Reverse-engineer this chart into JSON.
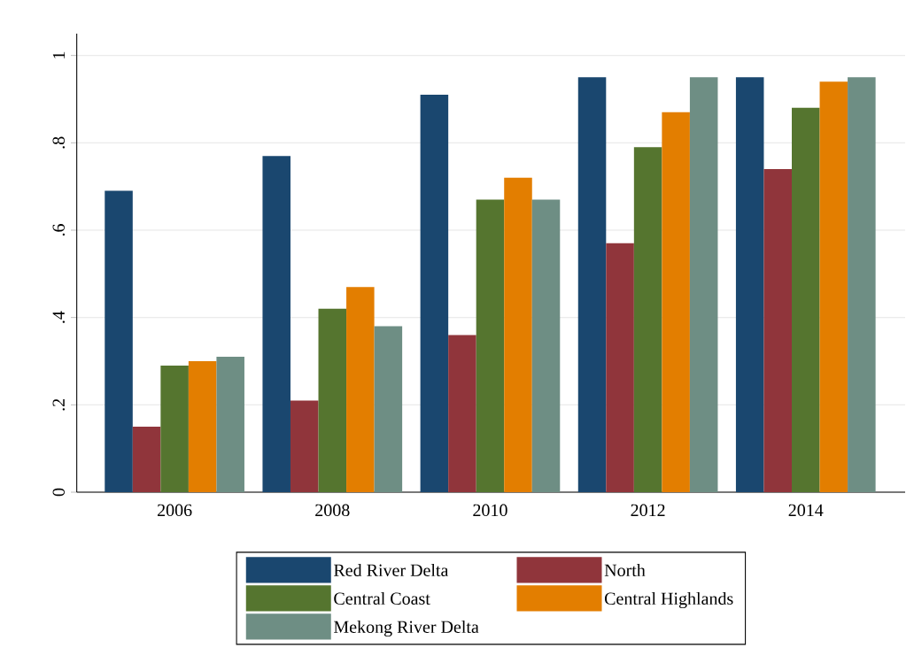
{
  "chart_data": {
    "type": "bar",
    "categories": [
      "2006",
      "2008",
      "2010",
      "2012",
      "2014"
    ],
    "series": [
      {
        "name": "Red River Delta",
        "color": "#1a476f",
        "values": [
          0.69,
          0.77,
          0.91,
          0.95,
          0.95
        ]
      },
      {
        "name": "North",
        "color": "#90353b",
        "values": [
          0.15,
          0.21,
          0.36,
          0.57,
          0.74
        ]
      },
      {
        "name": "Central Coast",
        "color": "#55752f",
        "values": [
          0.29,
          0.42,
          0.67,
          0.79,
          0.88
        ]
      },
      {
        "name": "Central Highlands",
        "color": "#e37e00",
        "values": [
          0.3,
          0.47,
          0.72,
          0.87,
          0.94
        ]
      },
      {
        "name": "Mekong River Delta",
        "color": "#6e8e84",
        "values": [
          0.31,
          0.38,
          0.67,
          0.95,
          0.95
        ]
      }
    ],
    "ylim": [
      0,
      1.05
    ],
    "yticks": [
      0,
      {
        "value": 0.2,
        "label": ".2"
      },
      {
        "value": 0.4,
        "label": ".4"
      },
      {
        "value": 0.6,
        "label": ".6"
      },
      {
        "value": 0.8,
        "label": ".8"
      },
      1
    ],
    "grid": "y",
    "legend": "bottom"
  }
}
